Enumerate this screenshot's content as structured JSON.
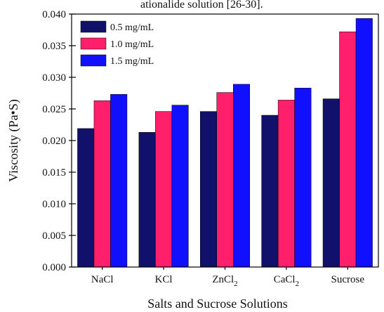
{
  "caption_fragment": "ationalide solution [26-30].",
  "chart_data": {
    "type": "bar",
    "xlabel": "Salts and Sucrose Solutions",
    "ylabel": "Viscosity (Pa•S)",
    "ylim": [
      0.0,
      0.04
    ],
    "yticks": [
      "0.000",
      "0.005",
      "0.010",
      "0.015",
      "0.020",
      "0.025",
      "0.030",
      "0.035",
      "0.040"
    ],
    "categories": [
      {
        "base": "NaCl",
        "sub": ""
      },
      {
        "base": "KCl",
        "sub": ""
      },
      {
        "base": "ZnCl",
        "sub": "2"
      },
      {
        "base": "CaCl",
        "sub": "2"
      },
      {
        "base": "Sucrose",
        "sub": ""
      }
    ],
    "series": [
      {
        "name": "0.5 mg/mL",
        "color": "#11116b",
        "values": [
          0.0219,
          0.0213,
          0.0246,
          0.024,
          0.0266
        ]
      },
      {
        "name": "1.0 mg/mL",
        "color": "#ff1f6b",
        "values": [
          0.0263,
          0.0246,
          0.0276,
          0.0264,
          0.0372
        ]
      },
      {
        "name": "1.5 mg/mL",
        "color": "#1010ff",
        "values": [
          0.0273,
          0.0256,
          0.0289,
          0.0283,
          0.0393
        ]
      }
    ],
    "legend_position": "top-left",
    "grid": false
  }
}
